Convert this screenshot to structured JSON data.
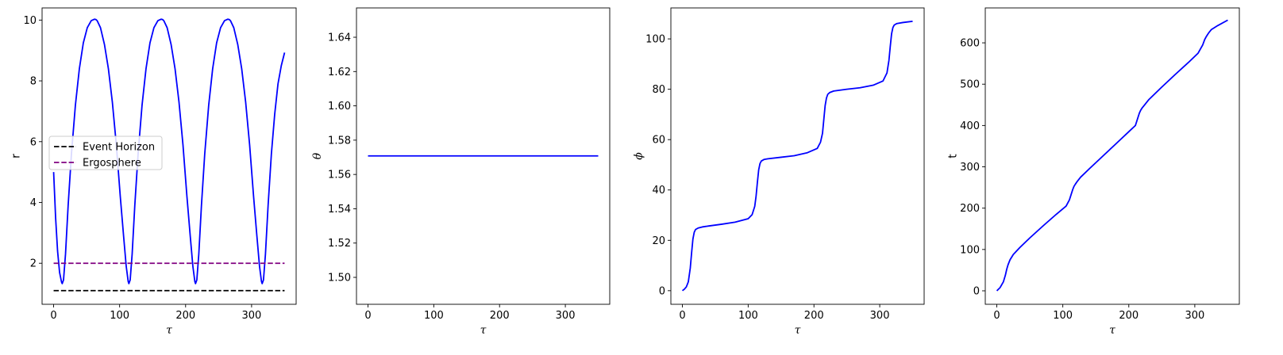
{
  "colors": {
    "trajectory": "#0000ff",
    "event_horizon": "#000000",
    "ergosphere": "#800080",
    "frame": "#000000",
    "background": "#ffffff"
  },
  "chart_data": [
    {
      "type": "line",
      "xlabel": "τ",
      "ylabel": "r",
      "xlim": [
        -17.5,
        367.5
      ],
      "ylim": [
        0.65,
        10.4
      ],
      "xticks": [
        0,
        100,
        200,
        300
      ],
      "xtick_labels": [
        "0",
        "100",
        "200",
        "300"
      ],
      "yticks": [
        2,
        4,
        6,
        8,
        10
      ],
      "ytick_labels": [
        "2",
        "4",
        "6",
        "8",
        "10"
      ],
      "grid": false,
      "legend_position": "center-left",
      "series": [
        {
          "style": "solid",
          "color": "#0000ff",
          "x": [
            0,
            3,
            6,
            9,
            12,
            13,
            15,
            18,
            22,
            27,
            33,
            39,
            45,
            51,
            57,
            62,
            64,
            66,
            71,
            77,
            83,
            89,
            95,
            101,
            106,
            110,
            113,
            114,
            116,
            119,
            123,
            128,
            134,
            140,
            146,
            152,
            158,
            163,
            165,
            167,
            172,
            178,
            184,
            190,
            196,
            202,
            207,
            211,
            214,
            215,
            217,
            220,
            224,
            229,
            235,
            241,
            247,
            253,
            259,
            264,
            266,
            268,
            273,
            279,
            285,
            291,
            297,
            303,
            308,
            312,
            315,
            316,
            318,
            321,
            325,
            330,
            335,
            340,
            345,
            350
          ],
          "y": [
            5.0,
            3.5,
            2.4,
            1.7,
            1.38,
            1.33,
            1.45,
            2.3,
            3.9,
            5.6,
            7.2,
            8.4,
            9.25,
            9.75,
            9.98,
            10.03,
            10.02,
            9.98,
            9.75,
            9.2,
            8.4,
            7.3,
            5.9,
            4.2,
            2.9,
            1.9,
            1.4,
            1.33,
            1.45,
            2.3,
            3.9,
            5.6,
            7.2,
            8.4,
            9.25,
            9.75,
            9.98,
            10.03,
            10.02,
            9.98,
            9.75,
            9.2,
            8.4,
            7.3,
            5.9,
            4.2,
            2.9,
            1.9,
            1.4,
            1.33,
            1.45,
            2.3,
            3.9,
            5.6,
            7.2,
            8.4,
            9.25,
            9.75,
            9.98,
            10.03,
            10.02,
            9.98,
            9.75,
            9.2,
            8.4,
            7.3,
            5.9,
            4.2,
            2.9,
            1.9,
            1.4,
            1.33,
            1.45,
            2.3,
            3.9,
            5.6,
            6.9,
            7.9,
            8.5,
            8.93
          ]
        },
        {
          "name": "Event Horizon",
          "style": "dashed",
          "color": "#000000",
          "x": [
            0,
            350
          ],
          "y": [
            1.1,
            1.1
          ]
        },
        {
          "name": "Ergosphere",
          "style": "dashed",
          "color": "#800080",
          "x": [
            0,
            350
          ],
          "y": [
            2.0,
            2.0
          ]
        }
      ]
    },
    {
      "type": "line",
      "xlabel": "τ",
      "ylabel": "θ",
      "xlim": [
        -17.5,
        367.5
      ],
      "ylim": [
        1.4843,
        1.6571
      ],
      "xticks": [
        0,
        100,
        200,
        300
      ],
      "xtick_labels": [
        "0",
        "100",
        "200",
        "300"
      ],
      "yticks": [
        1.5,
        1.52,
        1.54,
        1.56,
        1.58,
        1.6,
        1.62,
        1.64
      ],
      "ytick_labels": [
        "1.50",
        "1.52",
        "1.54",
        "1.56",
        "1.58",
        "1.60",
        "1.62",
        "1.64"
      ],
      "grid": false,
      "series": [
        {
          "style": "solid",
          "color": "#0000ff",
          "x": [
            0,
            350
          ],
          "y": [
            1.5708,
            1.5708
          ]
        }
      ]
    },
    {
      "type": "line",
      "xlabel": "τ",
      "ylabel": "ϕ",
      "xlim": [
        -17.5,
        367.5
      ],
      "ylim": [
        -5.4,
        112.3
      ],
      "xticks": [
        0,
        100,
        200,
        300
      ],
      "xtick_labels": [
        "0",
        "100",
        "200",
        "300"
      ],
      "yticks": [
        0,
        20,
        40,
        60,
        80,
        100
      ],
      "ytick_labels": [
        "0",
        "20",
        "40",
        "60",
        "80",
        "100"
      ],
      "grid": false,
      "series": [
        {
          "style": "solid",
          "color": "#0000ff",
          "x": [
            0,
            3,
            6,
            9,
            12,
            14,
            16,
            18,
            20,
            24,
            30,
            40,
            60,
            80,
            100,
            106,
            110,
            112,
            114,
            116,
            118,
            120,
            124,
            130,
            150,
            170,
            190,
            205,
            210,
            213,
            215,
            217,
            219,
            221,
            224,
            230,
            250,
            270,
            290,
            305,
            311,
            314,
            316,
            318,
            320,
            322,
            326,
            335,
            350
          ],
          "y": [
            0,
            0.6,
            1.5,
            3.5,
            9.0,
            15.0,
            20.5,
            23.2,
            24.3,
            24.9,
            25.3,
            25.7,
            26.4,
            27.2,
            28.6,
            30.2,
            33.5,
            37.5,
            43.0,
            48.0,
            50.5,
            51.5,
            52.1,
            52.4,
            53.0,
            53.6,
            54.8,
            56.5,
            59.0,
            62.5,
            68.0,
            73.5,
            76.5,
            78.0,
            78.7,
            79.3,
            80.0,
            80.6,
            81.6,
            83.3,
            86.5,
            91.5,
            97.0,
            102.0,
            104.5,
            105.5,
            106.1,
            106.5,
            107.0
          ]
        }
      ]
    },
    {
      "type": "line",
      "xlabel": "τ",
      "ylabel": "t",
      "xlim": [
        -17.5,
        367.5
      ],
      "ylim": [
        -32.6,
        684.5
      ],
      "xticks": [
        0,
        100,
        200,
        300
      ],
      "xtick_labels": [
        "0",
        "100",
        "200",
        "300"
      ],
      "yticks": [
        0,
        100,
        200,
        300,
        400,
        500,
        600
      ],
      "ytick_labels": [
        "0",
        "100",
        "200",
        "300",
        "400",
        "500",
        "600"
      ],
      "grid": false,
      "series": [
        {
          "style": "solid",
          "color": "#0000ff",
          "x": [
            0,
            5,
            10,
            13,
            15,
            17,
            20,
            25,
            35,
            50,
            70,
            90,
            105,
            110,
            113,
            115,
            117,
            119,
            122,
            127,
            140,
            160,
            180,
            200,
            210,
            214,
            216,
            218,
            220,
            224,
            230,
            250,
            270,
            290,
            305,
            312,
            315,
            317,
            319,
            321,
            325,
            335,
            350
          ],
          "y": [
            0,
            8,
            22,
            38,
            52,
            63,
            75,
            88,
            105,
            128,
            157,
            185,
            205,
            220,
            235,
            245,
            253,
            258,
            265,
            275,
            295,
            325,
            355,
            385,
            400,
            420,
            430,
            437,
            442,
            450,
            462,
            493,
            523,
            552,
            575,
            595,
            608,
            614,
            619,
            624,
            632,
            642,
            655
          ]
        }
      ]
    }
  ]
}
